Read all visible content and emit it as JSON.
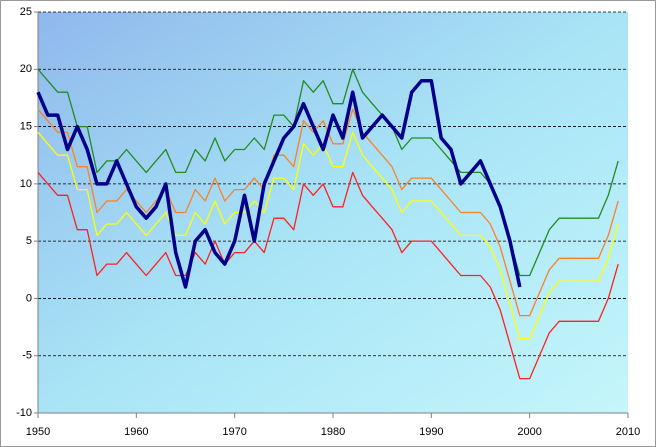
{
  "chart_data": {
    "type": "line",
    "x": [
      1950,
      1951,
      1952,
      1953,
      1954,
      1955,
      1956,
      1957,
      1958,
      1959,
      1960,
      1961,
      1962,
      1963,
      1964,
      1965,
      1966,
      1967,
      1968,
      1969,
      1970,
      1971,
      1972,
      1973,
      1974,
      1975,
      1976,
      1977,
      1978,
      1979,
      1980,
      1981,
      1982,
      1983,
      1984,
      1985,
      1986,
      1987,
      1988,
      1989,
      1990,
      1991,
      1992,
      1993,
      1994,
      1995,
      1996,
      1997,
      1998,
      1999,
      2000,
      2001,
      2002,
      2003,
      2004,
      2005,
      2006,
      2007,
      2008,
      2009
    ],
    "series": [
      {
        "color": "#228b22",
        "values": [
          20,
          19,
          18,
          18,
          15,
          15,
          11,
          12,
          12,
          13,
          12,
          11,
          12,
          13,
          11,
          11,
          13,
          12,
          14,
          12,
          13,
          13,
          14,
          13,
          16,
          16,
          15,
          19,
          18,
          19,
          17,
          17,
          20,
          18,
          17,
          16,
          15,
          13,
          14,
          14,
          14,
          13,
          12,
          11,
          11,
          11,
          10,
          8,
          5,
          2,
          2,
          4,
          6,
          7,
          7,
          7,
          7,
          7,
          9,
          12
        ]
      },
      {
        "color": "#ff7f27",
        "values": [
          16.5,
          15.5,
          14.5,
          14.5,
          11.5,
          11.5,
          7.5,
          8.5,
          8.5,
          9.5,
          8.5,
          7.5,
          8.5,
          9.5,
          7.5,
          7.5,
          9.5,
          8.5,
          10.5,
          8.5,
          9.5,
          9.5,
          10.5,
          9.5,
          12.5,
          12.5,
          11.5,
          15.5,
          14.5,
          15.5,
          13.5,
          13.5,
          16.5,
          14.5,
          13.5,
          12.5,
          11.5,
          9.5,
          10.5,
          10.5,
          10.5,
          9.5,
          8.5,
          7.5,
          7.5,
          7.5,
          6.5,
          4.5,
          1.5,
          -1.5,
          -1.5,
          0.5,
          2.5,
          3.5,
          3.5,
          3.5,
          3.5,
          3.5,
          5.5,
          8.5
        ]
      },
      {
        "color": "#ffff00",
        "values": [
          14.5,
          13.5,
          12.5,
          12.5,
          9.5,
          9.5,
          5.5,
          6.5,
          6.5,
          7.5,
          6.5,
          5.5,
          6.5,
          7.5,
          5.5,
          5.5,
          7.5,
          6.5,
          8.5,
          6.5,
          7.5,
          7.5,
          8.5,
          7.5,
          10.5,
          10.5,
          9.5,
          13.5,
          12.5,
          13.5,
          11.5,
          11.5,
          14.5,
          12.5,
          11.5,
          10.5,
          9.5,
          7.5,
          8.5,
          8.5,
          8.5,
          7.5,
          6.5,
          5.5,
          5.5,
          5.5,
          4.5,
          2.5,
          -0.5,
          -3.5,
          -3.5,
          -1.5,
          0.5,
          1.5,
          1.5,
          1.5,
          1.5,
          1.5,
          3.5,
          6.5
        ]
      },
      {
        "color": "#ff2020",
        "values": [
          11,
          10,
          9,
          9,
          6,
          6,
          2,
          3,
          3,
          4,
          3,
          2,
          3,
          4,
          2,
          2,
          4,
          3,
          5,
          3,
          4,
          4,
          5,
          4,
          7,
          7,
          6,
          10,
          9,
          10,
          8,
          8,
          11,
          9,
          8,
          7,
          6,
          4,
          5,
          5,
          5,
          4,
          3,
          2,
          2,
          2,
          1,
          -1,
          -4,
          -7,
          -7,
          -5,
          -3,
          -2,
          -2,
          -2,
          -2,
          -2,
          0,
          3
        ]
      },
      {
        "color": "#00008b",
        "values": [
          18,
          16,
          16,
          13,
          15,
          13,
          10,
          10,
          12,
          10,
          8,
          7,
          8,
          10,
          4,
          1,
          5,
          6,
          4,
          3,
          5,
          9,
          5,
          10,
          12,
          14,
          15,
          17,
          15,
          13,
          16,
          14,
          18,
          14,
          15,
          16,
          15,
          14,
          18,
          19,
          19,
          14,
          13,
          10,
          11,
          12,
          10,
          8,
          5,
          1,
          null,
          null,
          null,
          null,
          null,
          null,
          null,
          null,
          null,
          null
        ]
      }
    ],
    "xlim": [
      1950,
      2010
    ],
    "xticks": [
      1950,
      1960,
      1970,
      1980,
      1990,
      2000,
      2010
    ],
    "ylim": [
      -10,
      25
    ],
    "yticks": [
      -10,
      -5,
      0,
      5,
      10,
      15,
      20,
      25
    ],
    "grid": true
  }
}
